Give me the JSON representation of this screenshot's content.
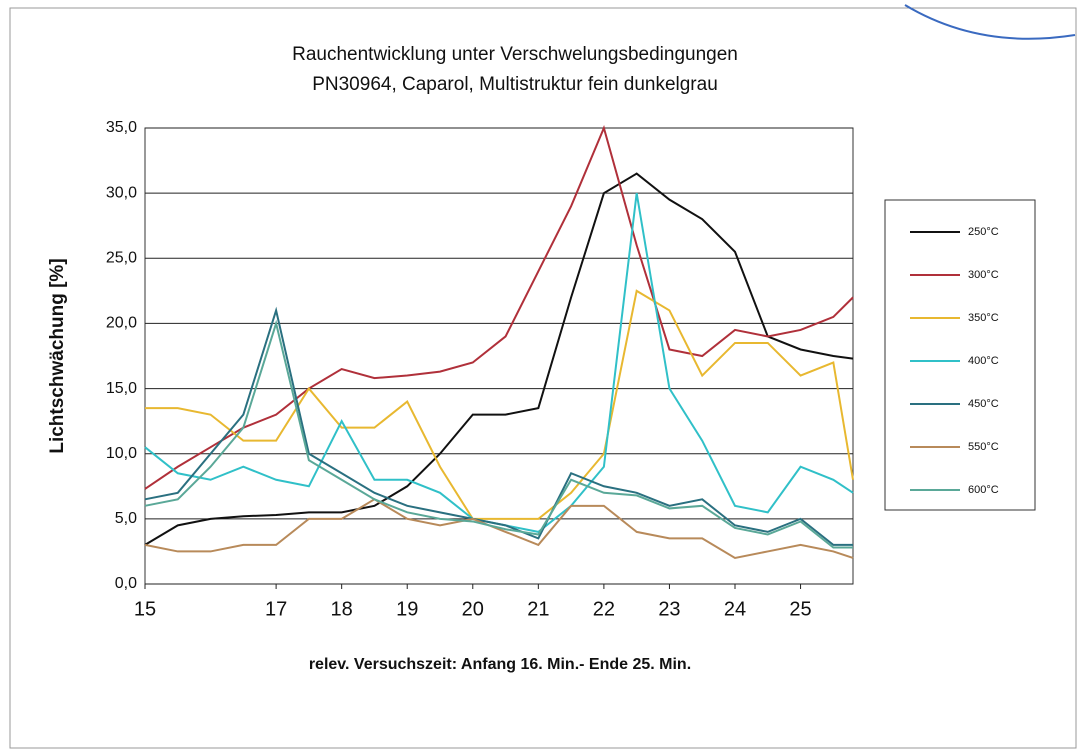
{
  "chart_data": {
    "type": "line",
    "title": "Rauchentwicklung unter Verschwelungsbedingungen",
    "subtitle": "PN30964, Caparol, Multistruktur fein dunkelgrau",
    "xlabel": "relev. Versuchszeit: Anfang 16. Min.- Ende 25. Min.",
    "ylabel": "Lichtschwächung [%]",
    "x": [
      15,
      15.5,
      16,
      16.5,
      17,
      17.5,
      18,
      18.5,
      19,
      19.5,
      20,
      20.5,
      21,
      21.5,
      22,
      22.5,
      23,
      23.5,
      24,
      24.5,
      25,
      25.5,
      25.8
    ],
    "xlim": [
      15,
      25.8
    ],
    "xticks": [
      15,
      17,
      18,
      19,
      20,
      21,
      22,
      23,
      24,
      25
    ],
    "ylim": [
      0,
      35
    ],
    "yticks": [
      {
        "value": 0,
        "label": "0,0"
      },
      {
        "value": 5,
        "label": "5,0"
      },
      {
        "value": 10,
        "label": "10,0"
      },
      {
        "value": 15,
        "label": "15,0"
      },
      {
        "value": 20,
        "label": "20,0"
      },
      {
        "value": 25,
        "label": "25,0"
      },
      {
        "value": 30,
        "label": "30,0"
      },
      {
        "value": 35,
        "label": "35,0"
      }
    ],
    "grid": true,
    "legend": "right",
    "series": [
      {
        "name": "250°C",
        "color": "#111111",
        "values": [
          3,
          4.5,
          5,
          5.2,
          5.3,
          5.5,
          5.5,
          6,
          7.5,
          10,
          13,
          13,
          13.5,
          22,
          30,
          31.5,
          29.5,
          28,
          25.5,
          19,
          18,
          17.5,
          17.3
        ]
      },
      {
        "name": "300°C",
        "color": "#b0303a",
        "values": [
          7.3,
          9,
          10.5,
          12,
          13,
          15,
          16.5,
          15.8,
          16,
          16.3,
          17,
          19,
          24,
          29,
          35,
          26,
          18,
          17.5,
          19.5,
          19,
          19.5,
          20.5,
          22
        ]
      },
      {
        "name": "350°C",
        "color": "#e8b830",
        "values": [
          13.5,
          13.5,
          13,
          11,
          11,
          15,
          12,
          12,
          14,
          9,
          5,
          5,
          5,
          7,
          10,
          22.5,
          21,
          16,
          18.5,
          18.5,
          16,
          17,
          8
        ]
      },
      {
        "name": "400°C",
        "color": "#30c0c8",
        "values": [
          10.5,
          8.5,
          8,
          9,
          8,
          7.5,
          12.5,
          8,
          8,
          7,
          5,
          4.5,
          4,
          6,
          9,
          30,
          15,
          11,
          6,
          5.5,
          9,
          8,
          7
        ]
      },
      {
        "name": "450°C",
        "color": "#2a7080",
        "values": [
          6.5,
          7,
          10,
          13,
          21,
          10,
          8.5,
          7,
          6,
          5.5,
          5,
          4.5,
          3.5,
          8.5,
          7.5,
          7,
          6,
          6.5,
          4.5,
          4,
          5,
          3,
          3
        ]
      },
      {
        "name": "550°C",
        "color": "#b88a5a",
        "values": [
          3,
          2.5,
          2.5,
          3,
          3,
          5,
          5,
          6.5,
          5,
          4.5,
          5,
          4,
          3,
          6,
          6,
          4,
          3.5,
          3.5,
          2,
          2.5,
          3,
          2.5,
          2
        ]
      },
      {
        "name": "600°C",
        "color": "#5aa898",
        "values": [
          6,
          6.5,
          9,
          12,
          20,
          9.5,
          8,
          6.5,
          5.5,
          5,
          4.8,
          4.2,
          3.8,
          8,
          7,
          6.8,
          5.8,
          6,
          4.3,
          3.8,
          4.8,
          2.8,
          2.8
        ]
      }
    ]
  }
}
